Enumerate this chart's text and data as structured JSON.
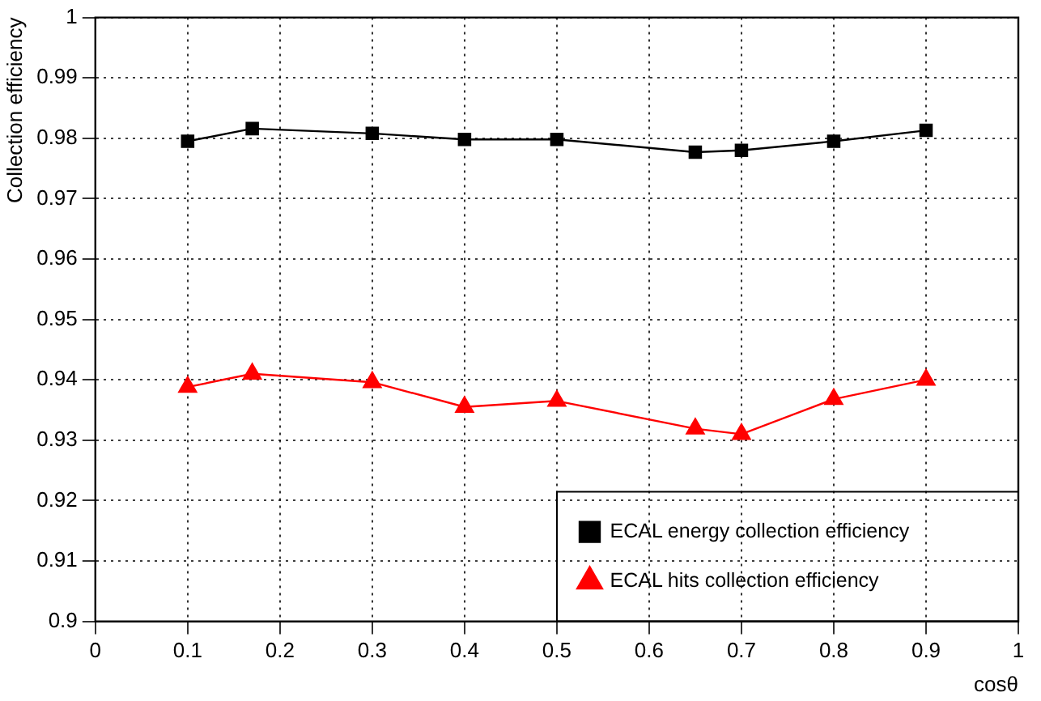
{
  "chart_data": {
    "type": "line",
    "xlabel": "cosθ",
    "ylabel": "Collection efficiency",
    "xlim": [
      0,
      1
    ],
    "xticks": [
      0,
      0.1,
      0.2,
      0.3,
      0.4,
      0.5,
      0.6,
      0.7,
      0.8,
      0.9,
      1
    ],
    "ylim": [
      0.9,
      1
    ],
    "yticks": [
      0.9,
      0.91,
      0.92,
      0.93,
      0.94,
      0.95,
      0.96,
      0.97,
      0.98,
      0.99,
      1
    ],
    "grid": true,
    "legend": "bottom right",
    "line_style": "solid",
    "x": [
      0.1,
      0.17,
      0.3,
      0.4,
      0.5,
      0.65,
      0.7,
      0.8,
      0.9
    ],
    "series": [
      {
        "name": "ECAL energy collection efficiency",
        "color": "#000000",
        "marker": "square",
        "values": [
          0.9795,
          0.9816,
          0.9808,
          0.9798,
          0.9798,
          0.9777,
          0.978,
          0.9795,
          0.9813
        ]
      },
      {
        "name": "ECAL hits collection efficiency",
        "color": "#ff0000",
        "marker": "triangle",
        "values": [
          0.9388,
          0.941,
          0.9396,
          0.9355,
          0.9365,
          0.9319,
          0.931,
          0.9368,
          0.94
        ]
      }
    ]
  }
}
